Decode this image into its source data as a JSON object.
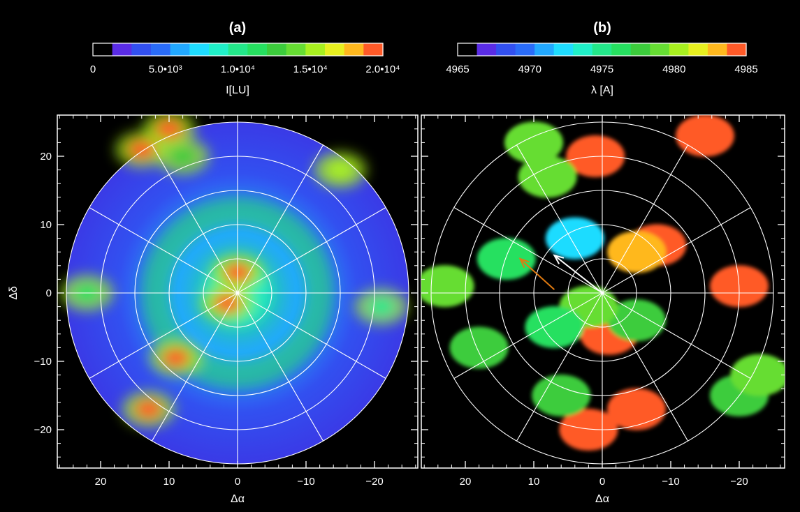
{
  "chart_data": [
    {
      "type": "heatmap",
      "panel_label": "(a)",
      "colorbar": {
        "label": "I[LU]",
        "range": [
          0,
          20000
        ],
        "tick_labels": [
          "0",
          "5.0•10³",
          "1.0•10⁴",
          "1.5•10⁴",
          "2.0•10⁴"
        ],
        "tick_values": [
          0,
          5000,
          10000,
          15000,
          20000
        ],
        "colors": [
          "#000000",
          "#5a2ce6",
          "#3250f0",
          "#2a6cf8",
          "#22a8ff",
          "#1fdcff",
          "#20f0c8",
          "#23e88a",
          "#26e060",
          "#3ccc3c",
          "#66dd33",
          "#a8f020",
          "#e8f020",
          "#ffb81e",
          "#ff5a28"
        ]
      },
      "xlabel": "Δα",
      "ylabel": "Δδ",
      "xlim": [
        27,
        -27
      ],
      "ylim": [
        -26,
        26
      ],
      "x_tick_labels": [
        "20",
        "10",
        "0",
        "−10",
        "−20"
      ],
      "x_ticks": [
        20,
        10,
        0,
        -10,
        -20
      ],
      "y_tick_labels": [
        "20",
        "10",
        "0",
        "−10",
        "−20"
      ],
      "y_ticks": [
        20,
        10,
        0,
        -10,
        -20
      ],
      "disk_radius": 25,
      "polar_grid_radii": [
        5,
        10,
        15,
        20,
        25
      ],
      "polar_grid_spokes_deg": [
        0,
        30,
        60,
        90,
        120,
        150
      ],
      "features": [
        {
          "x": 0,
          "y": 3,
          "intensity": 20000
        },
        {
          "x": 1.5,
          "y": -1.5,
          "intensity": 19000
        },
        {
          "x": 9,
          "y": -9.5,
          "intensity": 19000
        },
        {
          "x": 13,
          "y": -17,
          "intensity": 20000
        },
        {
          "x": 10,
          "y": 24,
          "intensity": 19500
        },
        {
          "x": 14,
          "y": 21,
          "intensity": 19000
        },
        {
          "x": -15,
          "y": 18,
          "intensity": 15000
        },
        {
          "x": 8,
          "y": 20,
          "intensity": 13000
        },
        {
          "x": -21,
          "y": -2,
          "intensity": 10000
        },
        {
          "x": 22,
          "y": 0,
          "intensity": 11000
        }
      ]
    },
    {
      "type": "heatmap",
      "panel_label": "(b)",
      "colorbar": {
        "label": "λ [A]",
        "range": [
          4965,
          4985
        ],
        "tick_labels": [
          "4965",
          "4970",
          "4975",
          "4980",
          "4985"
        ],
        "tick_values": [
          4965,
          4970,
          4975,
          4980,
          4985
        ],
        "colors": [
          "#000000",
          "#5a2ce6",
          "#3250f0",
          "#2a6cf8",
          "#22a8ff",
          "#1fdcff",
          "#20f0c8",
          "#23e88a",
          "#26e060",
          "#3ccc3c",
          "#66dd33",
          "#a8f020",
          "#e8f020",
          "#ffb81e",
          "#ff5a28"
        ]
      },
      "xlabel": "Δα",
      "xlim": [
        27,
        -27
      ],
      "ylim": [
        -26,
        26
      ],
      "x_tick_labels": [
        "20",
        "10",
        "0",
        "−10",
        "−20"
      ],
      "x_ticks": [
        20,
        10,
        0,
        -10,
        -20
      ],
      "disk_radius": 25,
      "polar_grid_radii": [
        5,
        10,
        15,
        20,
        25
      ],
      "polar_grid_spokes_deg": [
        0,
        30,
        60,
        90,
        120,
        150
      ],
      "arrows": [
        {
          "from": [
            0,
            0
          ],
          "to": [
            7,
            5.5
          ],
          "color": "#ffffff"
        },
        {
          "from": [
            7,
            0.5
          ],
          "to": [
            12,
            5
          ],
          "color": "#e07a10"
        }
      ],
      "features": [
        {
          "x": -8,
          "y": 7,
          "wavelength": 4985
        },
        {
          "x": -5,
          "y": 6,
          "wavelength": 4983
        },
        {
          "x": 1,
          "y": 20,
          "wavelength": 4985
        },
        {
          "x": -15,
          "y": 23,
          "wavelength": 4985
        },
        {
          "x": 2,
          "y": -20,
          "wavelength": 4985
        },
        {
          "x": -5,
          "y": -17,
          "wavelength": 4985
        },
        {
          "x": -1,
          "y": -6,
          "wavelength": 4985
        },
        {
          "x": -20,
          "y": 1,
          "wavelength": 4985
        },
        {
          "x": 6,
          "y": -15,
          "wavelength": 4977
        },
        {
          "x": 14,
          "y": 5,
          "wavelength": 4976
        },
        {
          "x": 18,
          "y": -8,
          "wavelength": 4978
        },
        {
          "x": 8,
          "y": 17,
          "wavelength": 4979
        },
        {
          "x": 10,
          "y": 22,
          "wavelength": 4979
        },
        {
          "x": 23,
          "y": 1,
          "wavelength": 4979
        },
        {
          "x": -5,
          "y": -4,
          "wavelength": 4977
        },
        {
          "x": 4,
          "y": 8,
          "wavelength": 4972
        },
        {
          "x": 2,
          "y": -2,
          "wavelength": 4979
        },
        {
          "x": 7,
          "y": -5,
          "wavelength": 4976
        },
        {
          "x": -20,
          "y": -15,
          "wavelength": 4977
        },
        {
          "x": -23,
          "y": -12,
          "wavelength": 4979
        }
      ]
    }
  ]
}
